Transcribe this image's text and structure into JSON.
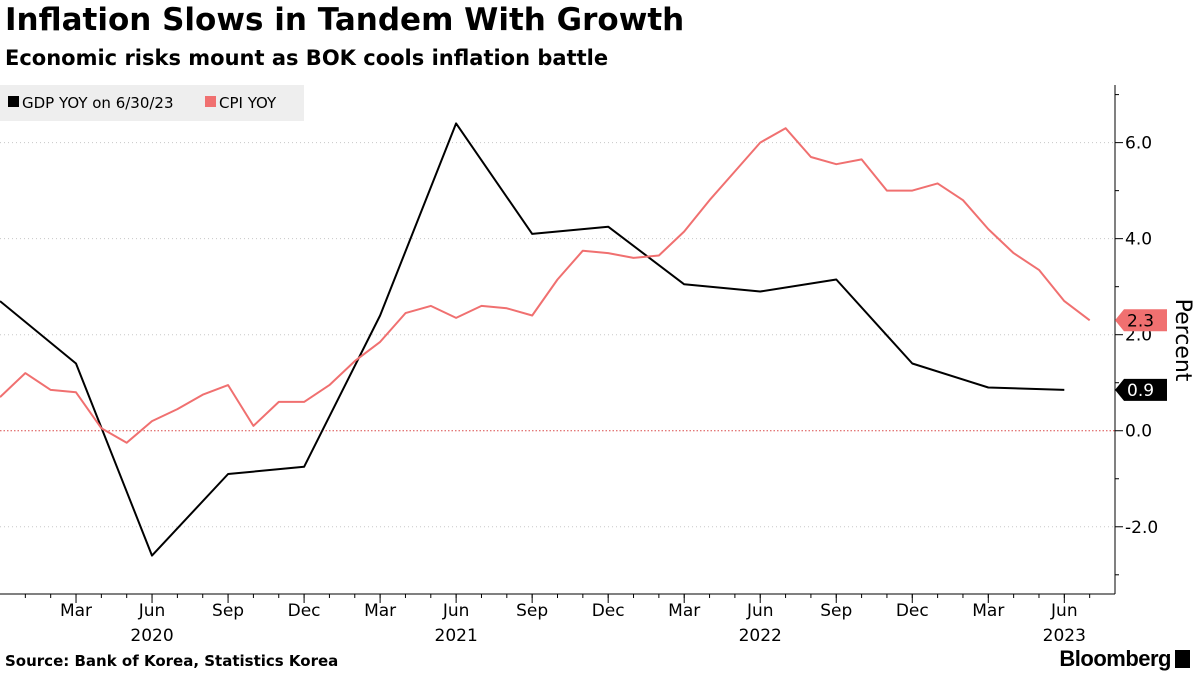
{
  "header": {
    "title": "Inflation Slows in Tandem With Growth",
    "subtitle": "Economic risks mount as BOK cools inflation battle"
  },
  "footer": {
    "source": "Source: Bank of Korea, Statistics Korea",
    "brand": "Bloomberg"
  },
  "chart_data": {
    "type": "line",
    "title": "Inflation Slows in Tandem With Growth",
    "subtitle": "Economic risks mount as BOK cools inflation battle",
    "ylabel": "Percent",
    "ylim": [
      -3.4,
      7.2
    ],
    "yticks": [
      -2.0,
      0.0,
      2.0,
      4.0,
      6.0
    ],
    "ytick_labels": [
      "-2.0",
      "0.0",
      "2.0",
      "4.0",
      "6.0"
    ],
    "xlim": [
      "2019-12",
      "2023-08"
    ],
    "xticks": [
      {
        "x": "2020-03",
        "month": "Mar",
        "year": ""
      },
      {
        "x": "2020-06",
        "month": "Jun",
        "year": "2020"
      },
      {
        "x": "2020-09",
        "month": "Sep",
        "year": ""
      },
      {
        "x": "2020-12",
        "month": "Dec",
        "year": ""
      },
      {
        "x": "2021-03",
        "month": "Mar",
        "year": ""
      },
      {
        "x": "2021-06",
        "month": "Jun",
        "year": "2021"
      },
      {
        "x": "2021-09",
        "month": "Sep",
        "year": ""
      },
      {
        "x": "2021-12",
        "month": "Dec",
        "year": ""
      },
      {
        "x": "2022-03",
        "month": "Mar",
        "year": ""
      },
      {
        "x": "2022-06",
        "month": "Jun",
        "year": "2022"
      },
      {
        "x": "2022-09",
        "month": "Sep",
        "year": ""
      },
      {
        "x": "2022-12",
        "month": "Dec",
        "year": ""
      },
      {
        "x": "2023-03",
        "month": "Mar",
        "year": ""
      },
      {
        "x": "2023-06",
        "month": "Jun",
        "year": "2023"
      }
    ],
    "grid": "horizontal-dotted",
    "zero_line": "red-dotted",
    "legend_position": "top-left",
    "series": [
      {
        "name": "GDP YOY on 6/30/23",
        "color": "#000000",
        "last_label": "0.9",
        "points": [
          [
            "2019-12",
            2.7
          ],
          [
            "2020-03",
            1.4
          ],
          [
            "2020-06",
            -2.6
          ],
          [
            "2020-09",
            -0.9
          ],
          [
            "2020-12",
            -0.75
          ],
          [
            "2021-03",
            2.4
          ],
          [
            "2021-06",
            6.4
          ],
          [
            "2021-09",
            4.1
          ],
          [
            "2021-12",
            4.25
          ],
          [
            "2022-03",
            3.05
          ],
          [
            "2022-06",
            2.9
          ],
          [
            "2022-09",
            3.15
          ],
          [
            "2022-12",
            1.4
          ],
          [
            "2023-03",
            0.9
          ],
          [
            "2023-06",
            0.85
          ]
        ]
      },
      {
        "name": "CPI YOY",
        "color": "#f07070",
        "last_label": "2.3",
        "points": [
          [
            "2019-12",
            0.7
          ],
          [
            "2020-01",
            1.2
          ],
          [
            "2020-02",
            0.85
          ],
          [
            "2020-03",
            0.8
          ],
          [
            "2020-04",
            0.05
          ],
          [
            "2020-05",
            -0.25
          ],
          [
            "2020-06",
            0.2
          ],
          [
            "2020-07",
            0.45
          ],
          [
            "2020-08",
            0.75
          ],
          [
            "2020-09",
            0.95
          ],
          [
            "2020-10",
            0.1
          ],
          [
            "2020-11",
            0.6
          ],
          [
            "2020-12",
            0.6
          ],
          [
            "2021-01",
            0.95
          ],
          [
            "2021-02",
            1.45
          ],
          [
            "2021-03",
            1.85
          ],
          [
            "2021-04",
            2.45
          ],
          [
            "2021-05",
            2.6
          ],
          [
            "2021-06",
            2.35
          ],
          [
            "2021-07",
            2.6
          ],
          [
            "2021-08",
            2.55
          ],
          [
            "2021-09",
            2.4
          ],
          [
            "2021-10",
            3.15
          ],
          [
            "2021-11",
            3.75
          ],
          [
            "2021-12",
            3.7
          ],
          [
            "2022-01",
            3.6
          ],
          [
            "2022-02",
            3.65
          ],
          [
            "2022-03",
            4.15
          ],
          [
            "2022-04",
            4.8
          ],
          [
            "2022-05",
            5.4
          ],
          [
            "2022-06",
            6.0
          ],
          [
            "2022-07",
            6.3
          ],
          [
            "2022-08",
            5.7
          ],
          [
            "2022-09",
            5.55
          ],
          [
            "2022-10",
            5.65
          ],
          [
            "2022-11",
            5.0
          ],
          [
            "2022-12",
            5.0
          ],
          [
            "2023-01",
            5.15
          ],
          [
            "2023-02",
            4.8
          ],
          [
            "2023-03",
            4.2
          ],
          [
            "2023-04",
            3.7
          ],
          [
            "2023-05",
            3.35
          ],
          [
            "2023-06",
            2.7
          ],
          [
            "2023-07",
            2.3
          ]
        ]
      }
    ]
  }
}
